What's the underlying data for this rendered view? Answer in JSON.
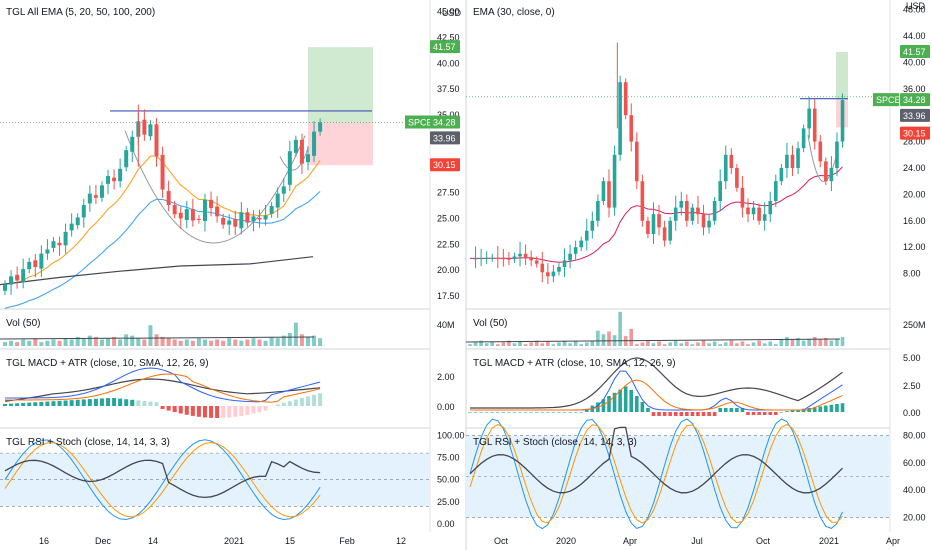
{
  "colors": {
    "up": "#26a69a",
    "down": "#ef5350",
    "ema5": "#f5a623",
    "ema20": "#42a5f5",
    "ema50": "#434651",
    "ema30": "#d81b60",
    "cup": "#9598a1",
    "resistance": "#3f51b5",
    "macd": "#2962ff",
    "signal": "#ff6d00",
    "atr": "#434651",
    "rsi": "#434651",
    "stochK": "#2196f3",
    "stochD": "#ff9800",
    "rsiBand": "#e3f2fd",
    "target": "#c8e6c9",
    "stop": "#ffcdd2",
    "priceGreen": "#4caf50",
    "stopRed": "#f44336",
    "lastGray": "#5d606b"
  },
  "chart_data": [
    {
      "panel": "left",
      "type": "candlestick",
      "currency": "USD",
      "symbol": "SPCE",
      "last_price": "34.28",
      "target_price": "41.57",
      "stop_price": "30.15",
      "entry_price": "33.96",
      "price_axis": {
        "min": 17.5,
        "max": 45,
        "ticks": [
          "45.00",
          "42.50",
          "40.00",
          "37.50",
          "35.00",
          "32.50",
          "27.50",
          "25.00",
          "22.50",
          "20.00",
          "17.50"
        ]
      },
      "time_axis": {
        "ticks": [
          "16",
          "Dec",
          "14",
          "2021",
          "15",
          "Feb",
          "12"
        ]
      },
      "main_title": "TGL All EMA (5, 20, 50, 100, 200)",
      "candles_close": [
        18.6,
        19.4,
        19.0,
        20.1,
        20.8,
        20.3,
        21.6,
        22.0,
        22.8,
        22.4,
        23.7,
        24.5,
        25.1,
        26.3,
        27.4,
        27.0,
        28.2,
        29.1,
        28.6,
        29.8,
        31.6,
        32.9,
        34.4,
        33.1,
        34.1,
        31.0,
        27.8,
        26.3,
        25.4,
        25.0,
        25.9,
        24.8,
        24.9,
        26.8,
        26.0,
        25.2,
        24.4,
        24.8,
        24.2,
        25.6,
        24.6,
        25.2,
        24.9,
        25.3,
        26.2,
        27.4,
        28.1,
        31.5,
        32.6,
        30.3,
        31.2,
        33.4,
        34.28
      ],
      "volume_label": "Vol (50)",
      "volume_axis": "40M",
      "macd_title": "TGL MACD + ATR (close, 10, SMA, 12, 26, 9)",
      "macd_axis": [
        "2.00",
        "0.00"
      ],
      "rsi_title": "TGL RSI + Stoch (close, 14, 14, 3, 3)",
      "rsi_axis": [
        "100.00",
        "75.00",
        "50.00",
        "25.00",
        "0.00"
      ]
    },
    {
      "panel": "right",
      "type": "candlestick",
      "currency": "USD",
      "symbol": "SPCE",
      "last_price": "34.28",
      "target_price": "41.57",
      "stop_price": "30.15",
      "entry_price": "33.96",
      "price_axis": {
        "min": 4,
        "max": 50,
        "ticks": [
          "48.00",
          "44.00",
          "40.00",
          "36.00",
          "28.00",
          "24.00",
          "20.00",
          "16.00",
          "12.00",
          "8.00"
        ]
      },
      "time_axis": {
        "ticks": [
          "Oct",
          "2020",
          "Apr",
          "Jul",
          "Oct",
          "2021",
          "Apr"
        ]
      },
      "main_title": "EMA (30, close, 0)",
      "volume_label": "Vol (50)",
      "volume_axis": "250M",
      "macd_title": "TGL MACD + ATR (close, 10, SMA, 12, 26, 9)",
      "macd_axis": [
        "5.00",
        "2.50",
        "0.00"
      ],
      "rsi_title": "TGL RSI + Stoch (close, 14, 14, 3, 3)",
      "rsi_axis": [
        "80.00",
        "60.00",
        "40.00",
        "20.00"
      ]
    }
  ]
}
